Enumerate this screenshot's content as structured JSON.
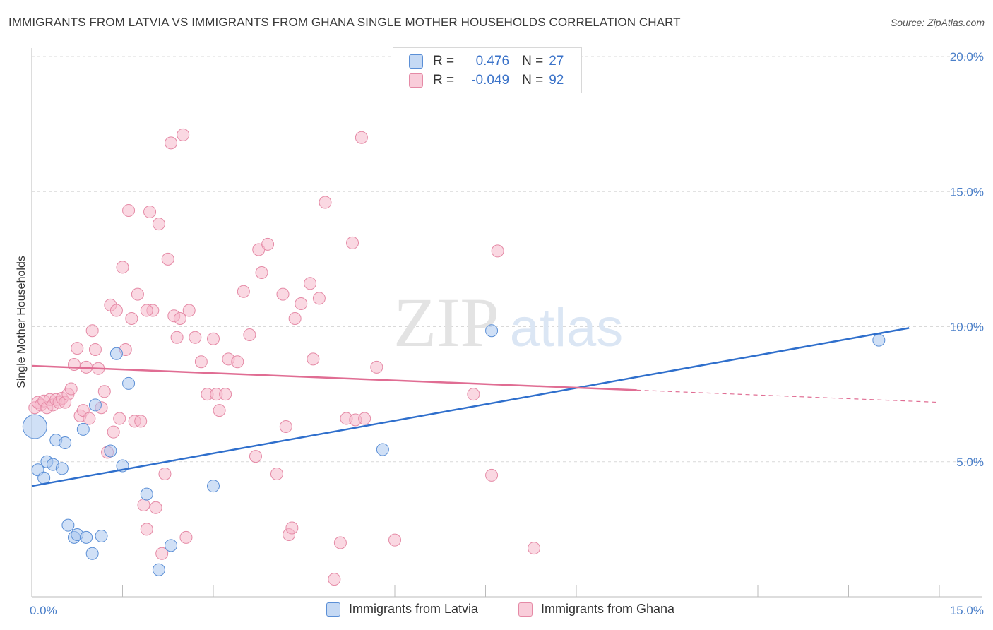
{
  "title": "IMMIGRANTS FROM LATVIA VS IMMIGRANTS FROM GHANA SINGLE MOTHER HOUSEHOLDS CORRELATION CHART",
  "source": "Source: ZipAtlas.com",
  "watermark": {
    "zip": "ZIP",
    "atlas": "atlas"
  },
  "colors": {
    "latvia_fill": "#a9c6ef",
    "latvia_stroke": "#5b8fd6",
    "latvia_line": "#2f6fcc",
    "ghana_fill": "#f6b8cb",
    "ghana_stroke": "#e58aa6",
    "ghana_line": "#e06d93",
    "tick_text": "#4a7fc9",
    "grid": "#d9d9d9"
  },
  "legend": {
    "rows": [
      {
        "r_label": "R =",
        "r_value": "0.476",
        "n_label": "N =",
        "n_value": "27"
      },
      {
        "r_label": "R =",
        "r_value": "-0.049",
        "n_label": "N =",
        "n_value": "92"
      }
    ]
  },
  "bottom_legend": {
    "latvia": "Immigrants from Latvia",
    "ghana": "Immigrants from Ghana"
  },
  "chart_data": {
    "type": "scatter",
    "xlabel": "",
    "ylabel": "Single Mother Households",
    "xlim": [
      0,
      15
    ],
    "ylim": [
      0,
      20
    ],
    "x_tick_labels": [
      "0.0%",
      "15.0%"
    ],
    "y_ticks": [
      {
        "value": 5,
        "label": "5.0%"
      },
      {
        "value": 10,
        "label": "10.0%"
      },
      {
        "value": 15,
        "label": "15.0%"
      },
      {
        "value": 20,
        "label": "20.0%"
      }
    ],
    "grid": true,
    "series": [
      {
        "name": "Immigrants from Latvia",
        "R": 0.476,
        "N": 27,
        "trend": {
          "x1": 0,
          "y1": 4.1,
          "x2": 14.5,
          "y2": 9.95
        },
        "points": [
          [
            0.05,
            6.3
          ],
          [
            0.1,
            4.7
          ],
          [
            0.2,
            4.4
          ],
          [
            0.25,
            5.0
          ],
          [
            0.35,
            4.9
          ],
          [
            0.4,
            5.8
          ],
          [
            0.5,
            4.75
          ],
          [
            0.55,
            5.7
          ],
          [
            0.6,
            2.65
          ],
          [
            0.7,
            2.2
          ],
          [
            0.75,
            2.3
          ],
          [
            0.85,
            6.2
          ],
          [
            0.9,
            2.2
          ],
          [
            1.0,
            1.6
          ],
          [
            1.05,
            7.1
          ],
          [
            1.15,
            2.25
          ],
          [
            1.3,
            5.4
          ],
          [
            1.4,
            9.0
          ],
          [
            1.5,
            4.85
          ],
          [
            1.6,
            7.9
          ],
          [
            1.9,
            3.8
          ],
          [
            2.1,
            1.0
          ],
          [
            2.3,
            1.9
          ],
          [
            3.0,
            4.1
          ],
          [
            5.8,
            5.45
          ],
          [
            7.6,
            9.85
          ],
          [
            14.0,
            9.5
          ]
        ]
      },
      {
        "name": "Immigrants from Ghana",
        "R": -0.049,
        "N": 92,
        "trend": {
          "x1": 0,
          "y1": 8.55,
          "x2": 10.0,
          "y2": 7.65
        },
        "trend_dashed": {
          "x1": 10.0,
          "y1": 7.65,
          "x2": 15.0,
          "y2": 7.2
        },
        "points": [
          [
            0.05,
            7.0
          ],
          [
            0.1,
            7.2
          ],
          [
            0.15,
            7.1
          ],
          [
            0.2,
            7.25
          ],
          [
            0.25,
            7.0
          ],
          [
            0.3,
            7.3
          ],
          [
            0.35,
            7.1
          ],
          [
            0.4,
            7.3
          ],
          [
            0.45,
            7.2
          ],
          [
            0.5,
            7.35
          ],
          [
            0.55,
            7.2
          ],
          [
            0.6,
            7.5
          ],
          [
            0.65,
            7.7
          ],
          [
            0.7,
            8.6
          ],
          [
            0.75,
            9.2
          ],
          [
            0.8,
            6.7
          ],
          [
            0.85,
            6.9
          ],
          [
            0.9,
            8.5
          ],
          [
            0.95,
            6.6
          ],
          [
            1.0,
            9.85
          ],
          [
            1.05,
            9.15
          ],
          [
            1.1,
            8.45
          ],
          [
            1.15,
            7.0
          ],
          [
            1.2,
            7.6
          ],
          [
            1.25,
            5.35
          ],
          [
            1.3,
            10.8
          ],
          [
            1.35,
            6.1
          ],
          [
            1.4,
            10.6
          ],
          [
            1.45,
            6.6
          ],
          [
            1.5,
            12.2
          ],
          [
            1.55,
            9.15
          ],
          [
            1.6,
            14.3
          ],
          [
            1.65,
            10.3
          ],
          [
            1.7,
            6.5
          ],
          [
            1.75,
            11.2
          ],
          [
            1.8,
            6.5
          ],
          [
            1.85,
            3.4
          ],
          [
            1.9,
            2.5
          ],
          [
            1.95,
            14.25
          ],
          [
            2.0,
            10.6
          ],
          [
            2.05,
            3.3
          ],
          [
            2.1,
            13.8
          ],
          [
            2.15,
            1.6
          ],
          [
            2.2,
            4.55
          ],
          [
            2.25,
            12.5
          ],
          [
            2.3,
            16.8
          ],
          [
            2.35,
            10.4
          ],
          [
            2.4,
            9.6
          ],
          [
            2.45,
            10.3
          ],
          [
            2.5,
            17.1
          ],
          [
            2.55,
            2.2
          ],
          [
            2.6,
            10.6
          ],
          [
            2.7,
            9.6
          ],
          [
            2.8,
            8.7
          ],
          [
            2.9,
            7.5
          ],
          [
            3.0,
            9.55
          ],
          [
            3.05,
            7.5
          ],
          [
            3.1,
            6.9
          ],
          [
            3.2,
            7.5
          ],
          [
            3.25,
            8.8
          ],
          [
            3.4,
            8.7
          ],
          [
            3.5,
            11.3
          ],
          [
            3.6,
            9.7
          ],
          [
            3.7,
            5.2
          ],
          [
            3.75,
            12.85
          ],
          [
            3.8,
            12.0
          ],
          [
            3.9,
            13.05
          ],
          [
            4.05,
            4.55
          ],
          [
            4.15,
            11.2
          ],
          [
            4.2,
            6.3
          ],
          [
            4.25,
            2.3
          ],
          [
            4.3,
            2.55
          ],
          [
            4.35,
            10.3
          ],
          [
            4.45,
            10.85
          ],
          [
            4.6,
            11.6
          ],
          [
            4.65,
            8.8
          ],
          [
            4.75,
            11.05
          ],
          [
            4.85,
            14.6
          ],
          [
            5.0,
            0.65
          ],
          [
            5.1,
            2.0
          ],
          [
            5.2,
            6.6
          ],
          [
            5.3,
            13.1
          ],
          [
            5.35,
            6.55
          ],
          [
            5.45,
            17.0
          ],
          [
            5.5,
            6.6
          ],
          [
            6.0,
            2.1
          ],
          [
            7.3,
            7.5
          ],
          [
            7.6,
            4.5
          ],
          [
            7.7,
            12.8
          ],
          [
            8.3,
            1.8
          ],
          [
            5.7,
            8.5
          ],
          [
            1.9,
            10.6
          ]
        ]
      }
    ]
  }
}
